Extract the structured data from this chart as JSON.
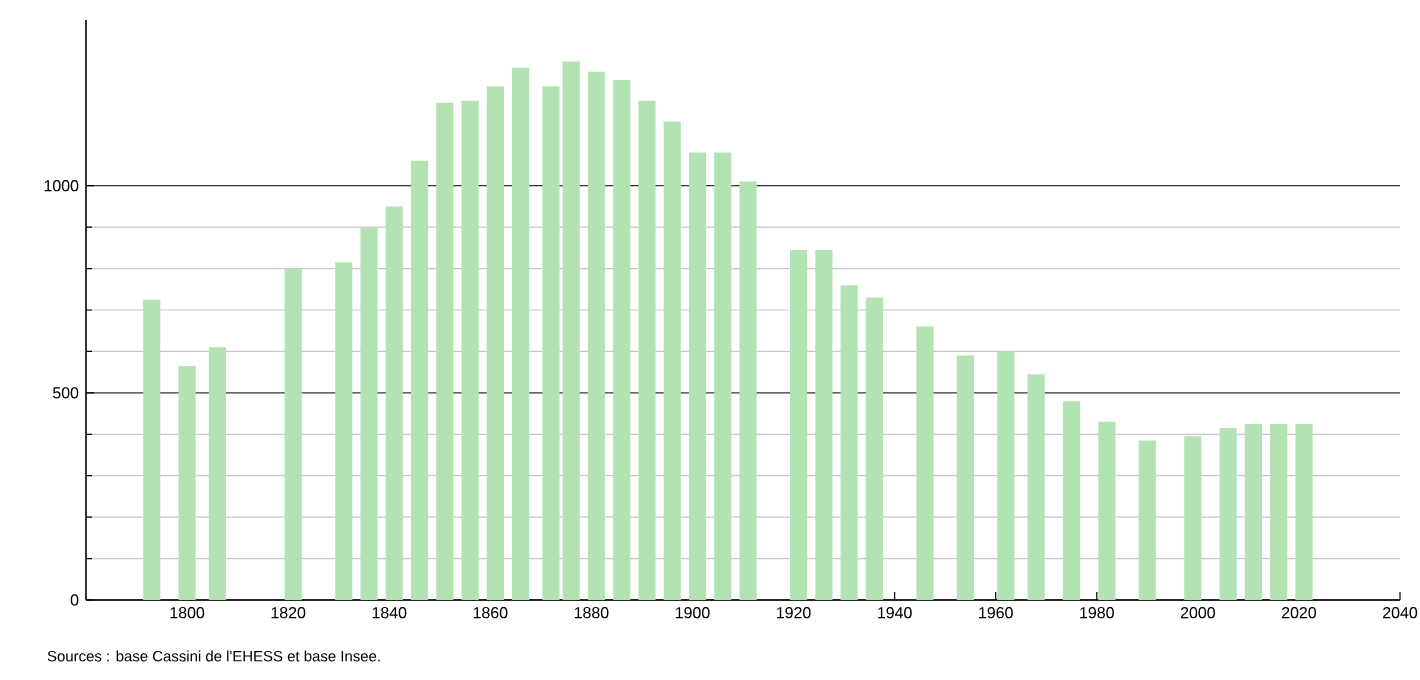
{
  "chart_data": {
    "type": "bar",
    "color": "#b3e3b3",
    "x": [
      1793,
      1800,
      1806,
      1821,
      1831,
      1836,
      1841,
      1846,
      1851,
      1856,
      1861,
      1866,
      1872,
      1876,
      1881,
      1886,
      1891,
      1896,
      1901,
      1906,
      1911,
      1921,
      1926,
      1931,
      1936,
      1946,
      1954,
      1962,
      1968,
      1975,
      1982,
      1990,
      1999,
      2006,
      2011,
      2016,
      2021
    ],
    "values": [
      725,
      565,
      610,
      800,
      815,
      900,
      950,
      1060,
      1200,
      1205,
      1240,
      1285,
      1240,
      1300,
      1275,
      1255,
      1205,
      1155,
      1080,
      1080,
      1010,
      845,
      845,
      760,
      730,
      660,
      590,
      600,
      545,
      480,
      430,
      385,
      395,
      415,
      425,
      425,
      425
    ],
    "xlim": [
      1780,
      2040
    ],
    "xticks": [
      1800,
      1820,
      1840,
      1860,
      1880,
      1900,
      1920,
      1940,
      1960,
      1980,
      2000,
      2020,
      2040
    ],
    "ylim": [
      0,
      1400
    ],
    "yticks": [
      0,
      500,
      1000
    ],
    "grid": "y",
    "annotations": [
      "Sources : base Cassini de l'EHESS et base Insee."
    ]
  }
}
